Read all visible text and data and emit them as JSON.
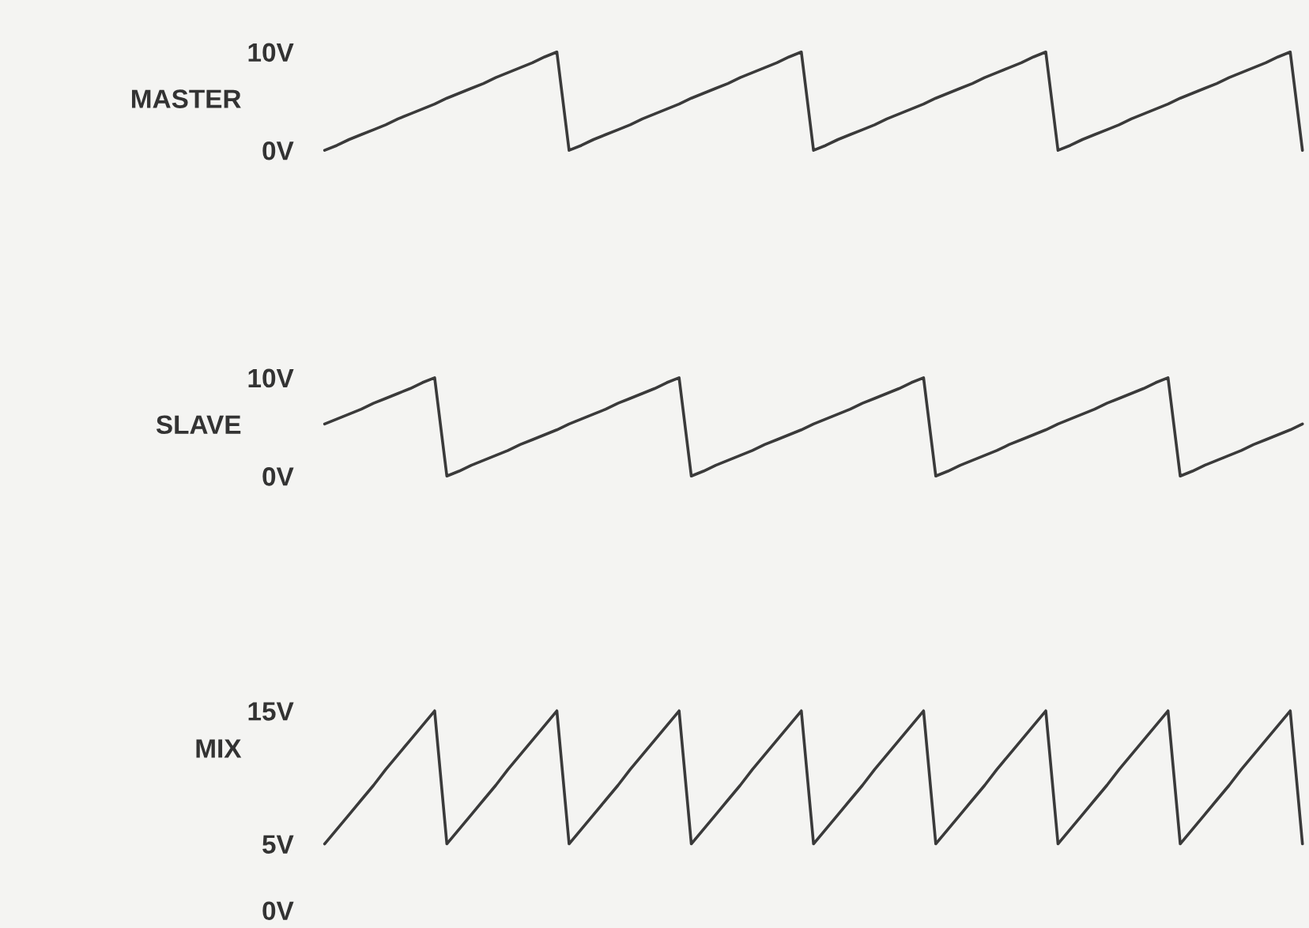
{
  "chart_data": [
    {
      "type": "line",
      "ylabel": "MASTER",
      "categories": [
        null,
        null,
        null,
        null,
        null,
        null,
        null,
        null,
        null,
        null,
        null,
        null,
        null,
        null,
        null,
        null,
        null,
        null,
        null,
        null,
        null,
        null,
        null,
        null,
        null,
        null,
        null,
        null,
        null,
        null,
        null,
        null,
        null,
        null,
        null,
        null,
        null,
        null,
        null,
        null,
        null,
        null,
        null,
        null,
        null,
        null,
        null,
        null,
        null,
        null,
        null,
        null,
        null,
        null,
        null,
        null,
        null,
        null,
        null,
        null,
        null,
        null,
        null,
        null,
        null,
        null,
        null,
        null,
        null,
        null,
        null,
        null,
        null,
        null,
        null,
        null,
        null,
        null,
        null,
        null,
        null
      ],
      "ylim": [
        0,
        10
      ],
      "yticks": [
        {
          "value": 0,
          "label": "0V"
        },
        {
          "value": 10,
          "label": "10V"
        }
      ],
      "tick_labels": "y",
      "series": [
        {
          "color": "#3a3a3a",
          "values": [
            0,
            0.5,
            1.1,
            1.6,
            2.1,
            2.6,
            3.2,
            3.7,
            4.2,
            4.7,
            5.3,
            5.8,
            6.3,
            6.8,
            7.4,
            7.9,
            8.4,
            8.9,
            9.5,
            10,
            0,
            0.5,
            1.1,
            1.6,
            2.1,
            2.6,
            3.2,
            3.7,
            4.2,
            4.7,
            5.3,
            5.8,
            6.3,
            6.8,
            7.4,
            7.9,
            8.4,
            8.9,
            9.5,
            10,
            0,
            0.5,
            1.1,
            1.6,
            2.1,
            2.6,
            3.2,
            3.7,
            4.2,
            4.7,
            5.3,
            5.8,
            6.3,
            6.8,
            7.4,
            7.9,
            8.4,
            8.9,
            9.5,
            10,
            0,
            0.5,
            1.1,
            1.6,
            2.1,
            2.6,
            3.2,
            3.7,
            4.2,
            4.7,
            5.3,
            5.8,
            6.3,
            6.8,
            7.4,
            7.9,
            8.4,
            8.9,
            9.5,
            10,
            0
          ]
        }
      ]
    },
    {
      "type": "line",
      "ylabel": "SLAVE",
      "categories": [
        null,
        null,
        null,
        null,
        null,
        null,
        null,
        null,
        null,
        null,
        null,
        null,
        null,
        null,
        null,
        null,
        null,
        null,
        null,
        null,
        null,
        null,
        null,
        null,
        null,
        null,
        null,
        null,
        null,
        null,
        null,
        null,
        null,
        null,
        null,
        null,
        null,
        null,
        null,
        null,
        null,
        null,
        null,
        null,
        null,
        null,
        null,
        null,
        null,
        null,
        null,
        null,
        null,
        null,
        null,
        null,
        null,
        null,
        null,
        null,
        null,
        null,
        null,
        null,
        null,
        null,
        null,
        null,
        null,
        null,
        null,
        null,
        null,
        null,
        null,
        null,
        null,
        null,
        null,
        null,
        null
      ],
      "ylim": [
        0,
        10
      ],
      "yticks": [
        {
          "value": 0,
          "label": "0V"
        },
        {
          "value": 10,
          "label": "10V"
        }
      ],
      "tick_labels": "y",
      "series": [
        {
          "color": "#3a3a3a",
          "values": [
            5.3,
            5.8,
            6.3,
            6.8,
            7.4,
            7.9,
            8.4,
            8.9,
            9.5,
            10,
            0,
            0.5,
            1.1,
            1.6,
            2.1,
            2.6,
            3.2,
            3.7,
            4.2,
            4.7,
            5.3,
            5.8,
            6.3,
            6.8,
            7.4,
            7.9,
            8.4,
            8.9,
            9.5,
            10,
            0,
            0.5,
            1.1,
            1.6,
            2.1,
            2.6,
            3.2,
            3.7,
            4.2,
            4.7,
            5.3,
            5.8,
            6.3,
            6.8,
            7.4,
            7.9,
            8.4,
            8.9,
            9.5,
            10,
            0,
            0.5,
            1.1,
            1.6,
            2.1,
            2.6,
            3.2,
            3.7,
            4.2,
            4.7,
            5.3,
            5.8,
            6.3,
            6.8,
            7.4,
            7.9,
            8.4,
            8.9,
            9.5,
            10,
            0,
            0.5,
            1.1,
            1.6,
            2.1,
            2.6,
            3.2,
            3.7,
            4.2,
            4.7,
            5.3
          ]
        }
      ]
    },
    {
      "type": "line",
      "ylabel": "MIX",
      "categories": [
        null,
        null,
        null,
        null,
        null,
        null,
        null,
        null,
        null,
        null,
        null,
        null,
        null,
        null,
        null,
        null,
        null,
        null,
        null,
        null,
        null,
        null,
        null,
        null,
        null,
        null,
        null,
        null,
        null,
        null,
        null,
        null,
        null,
        null,
        null,
        null,
        null,
        null,
        null,
        null,
        null,
        null,
        null,
        null,
        null,
        null,
        null,
        null,
        null,
        null,
        null,
        null,
        null,
        null,
        null,
        null,
        null,
        null,
        null,
        null,
        null,
        null,
        null,
        null,
        null,
        null,
        null,
        null,
        null,
        null,
        null,
        null,
        null,
        null,
        null,
        null,
        null,
        null,
        null,
        null,
        null
      ],
      "ylim": [
        0,
        15
      ],
      "yticks": [
        {
          "value": 0,
          "label": "0V"
        },
        {
          "value": 5,
          "label": "5V"
        },
        {
          "value": 15,
          "label": "15V"
        }
      ],
      "tick_labels": "y",
      "series": [
        {
          "color": "#3a3a3a",
          "values": [
            5,
            6.1,
            7.2,
            8.3,
            9.4,
            10.6,
            11.7,
            12.8,
            13.9,
            15,
            5,
            6.1,
            7.2,
            8.3,
            9.4,
            10.6,
            11.7,
            12.8,
            13.9,
            15,
            5,
            6.1,
            7.2,
            8.3,
            9.4,
            10.6,
            11.7,
            12.8,
            13.9,
            15,
            5,
            6.1,
            7.2,
            8.3,
            9.4,
            10.6,
            11.7,
            12.8,
            13.9,
            15,
            5,
            6.1,
            7.2,
            8.3,
            9.4,
            10.6,
            11.7,
            12.8,
            13.9,
            15,
            5,
            6.1,
            7.2,
            8.3,
            9.4,
            10.6,
            11.7,
            12.8,
            13.9,
            15,
            5,
            6.1,
            7.2,
            8.3,
            9.4,
            10.6,
            11.7,
            12.8,
            13.9,
            15,
            5,
            6.1,
            7.2,
            8.3,
            9.4,
            10.6,
            11.7,
            12.8,
            13.9,
            15,
            5
          ]
        }
      ]
    }
  ]
}
